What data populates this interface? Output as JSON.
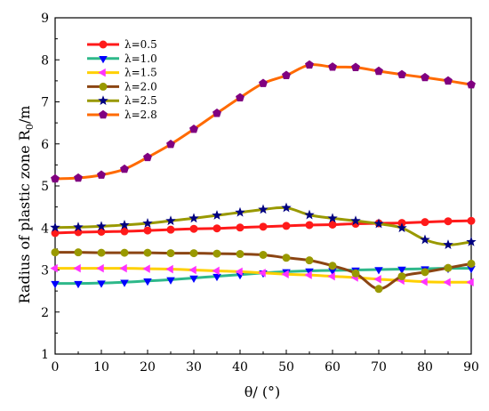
{
  "chart_data": {
    "type": "line",
    "xlabel": "θ/ (°)",
    "ylabel_main": "Radius of plastic zone R",
    "ylabel_sub": "0",
    "ylabel_unit": "/m",
    "xlim": [
      0,
      90
    ],
    "ylim": [
      1,
      9
    ],
    "xticks": [
      0,
      10,
      20,
      30,
      40,
      50,
      60,
      70,
      80,
      90
    ],
    "yticks": [
      1,
      2,
      3,
      4,
      5,
      6,
      7,
      8,
      9
    ],
    "grid": false,
    "legend_position": "top-left",
    "x": [
      0,
      5,
      10,
      15,
      20,
      25,
      30,
      35,
      40,
      45,
      50,
      55,
      60,
      65,
      70,
      75,
      80,
      85,
      90
    ],
    "series": [
      {
        "name": "λ=0.5",
        "line_color": "#ff1a1a",
        "marker": "circle",
        "marker_color": "#ff1a1a",
        "values": [
          3.88,
          3.9,
          3.91,
          3.92,
          3.94,
          3.96,
          3.98,
          3.99,
          4.01,
          4.03,
          4.05,
          4.07,
          4.08,
          4.1,
          4.11,
          4.12,
          4.14,
          4.16,
          4.17
        ]
      },
      {
        "name": "λ=1.0",
        "line_color": "#2eb88a",
        "marker": "triangle-down",
        "marker_color": "#0000ff",
        "values": [
          2.68,
          2.68,
          2.69,
          2.71,
          2.74,
          2.77,
          2.81,
          2.85,
          2.89,
          2.93,
          2.96,
          2.98,
          2.99,
          3.0,
          3.01,
          3.02,
          3.03,
          3.04,
          3.04
        ]
      },
      {
        "name": "λ=1.5",
        "line_color": "#ffd000",
        "marker": "triangle-left",
        "marker_color": "#ff33ff",
        "values": [
          3.04,
          3.04,
          3.04,
          3.04,
          3.03,
          3.02,
          3.0,
          2.98,
          2.96,
          2.93,
          2.9,
          2.88,
          2.85,
          2.82,
          2.78,
          2.75,
          2.72,
          2.71,
          2.71
        ]
      },
      {
        "name": "λ=2.0",
        "line_color": "#8b4513",
        "marker": "circle",
        "marker_color": "#999900",
        "values": [
          3.42,
          3.42,
          3.41,
          3.41,
          3.41,
          3.4,
          3.4,
          3.39,
          3.38,
          3.36,
          3.29,
          3.23,
          3.1,
          2.92,
          2.55,
          2.85,
          2.95,
          3.05,
          3.15
        ]
      },
      {
        "name": "λ=2.5",
        "line_color": "#999900",
        "marker": "star",
        "marker_color": "#000080",
        "values": [
          4.01,
          4.02,
          4.04,
          4.07,
          4.11,
          4.17,
          4.23,
          4.3,
          4.37,
          4.44,
          4.48,
          4.31,
          4.23,
          4.17,
          4.1,
          4.0,
          3.72,
          3.6,
          3.67
        ]
      },
      {
        "name": "λ=2.8",
        "line_color": "#ff6a00",
        "marker": "pentagon",
        "marker_color": "#800080",
        "values": [
          5.17,
          5.19,
          5.26,
          5.4,
          5.68,
          5.99,
          6.35,
          6.73,
          7.1,
          7.44,
          7.63,
          7.88,
          7.83,
          7.82,
          7.73,
          7.65,
          7.58,
          7.5,
          7.41
        ]
      }
    ]
  }
}
